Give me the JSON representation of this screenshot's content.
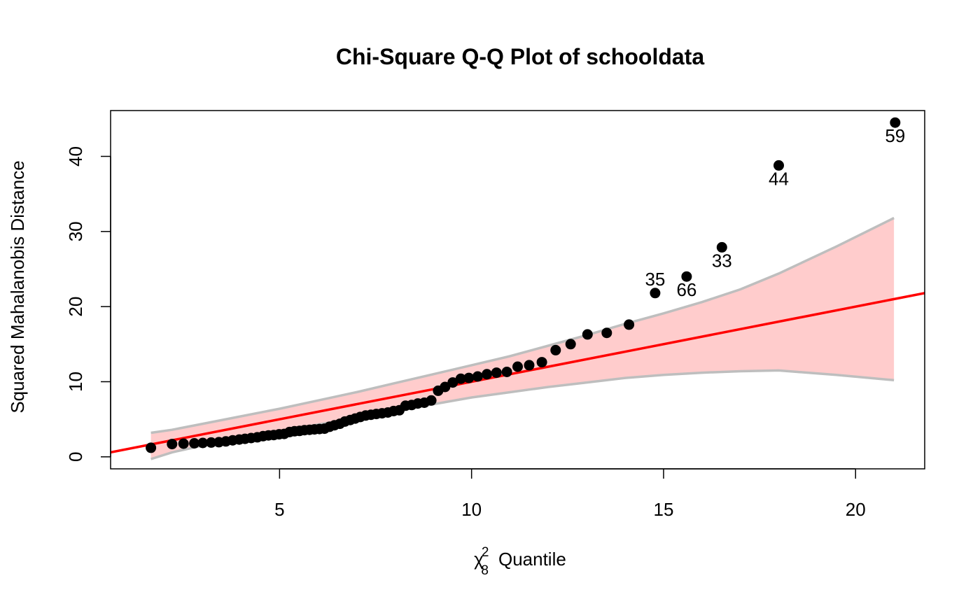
{
  "chart_data": {
    "type": "scatter",
    "title": "Chi-Square Q-Q Plot of schooldata",
    "xlabel": {
      "symbol": "χ",
      "superscript": "2",
      "subscript": "8",
      "text": "Quantile"
    },
    "ylabel": "Squared Mahalanobis Distance",
    "xlim": [
      0.6,
      21.8
    ],
    "ylim": [
      -1.6,
      46.1
    ],
    "x_ticks": [
      5,
      10,
      15,
      20
    ],
    "y_ticks": [
      0,
      10,
      20,
      30,
      40
    ],
    "grid": false,
    "legend": "none",
    "colors": {
      "points": "#000000",
      "reference_line": "#ff0000",
      "band_fill": "#ffcccc",
      "band_border": "#bebebe"
    },
    "reference_line": {
      "intercept": 0,
      "slope": 1
    },
    "band": {
      "x": [
        1.65,
        2.2,
        3.0,
        4.0,
        5.0,
        6.0,
        7.0,
        8.0,
        9.0,
        10.0,
        11.0,
        12.0,
        13.0,
        14.0,
        15.0,
        16.0,
        17.0,
        18.0,
        19.5,
        21.0
      ],
      "upper": [
        3.2,
        3.6,
        4.4,
        5.4,
        6.4,
        7.5,
        8.6,
        9.8,
        11.0,
        12.2,
        13.4,
        14.8,
        16.2,
        17.7,
        19.1,
        20.6,
        22.3,
        24.4,
        28.0,
        31.8
      ],
      "lower": [
        -0.3,
        0.6,
        1.5,
        2.5,
        3.4,
        4.3,
        5.2,
        6.1,
        7.0,
        7.9,
        8.6,
        9.3,
        9.9,
        10.5,
        10.9,
        11.2,
        11.4,
        11.5,
        10.9,
        10.2
      ]
    },
    "points": {
      "x": [
        1.65,
        2.2,
        2.5,
        2.78,
        3.0,
        3.22,
        3.42,
        3.6,
        3.78,
        3.95,
        4.1,
        4.26,
        4.42,
        4.57,
        4.71,
        4.85,
        4.99,
        5.12,
        5.26,
        5.39,
        5.52,
        5.65,
        5.78,
        5.91,
        6.04,
        6.17,
        6.3,
        6.43,
        6.57,
        6.7,
        6.84,
        6.97,
        7.1,
        7.24,
        7.38,
        7.52,
        7.67,
        7.82,
        7.97,
        8.12,
        8.28,
        8.44,
        8.6,
        8.77,
        8.95,
        9.13,
        9.31,
        9.51,
        9.72,
        9.93,
        10.16,
        10.4,
        10.65,
        10.92,
        11.2,
        11.5,
        11.83,
        12.19,
        12.58,
        13.02,
        13.52,
        14.1,
        14.78,
        15.6,
        16.52,
        18.0,
        21.03
      ],
      "y": [
        1.2,
        1.7,
        1.75,
        1.8,
        1.85,
        1.9,
        1.95,
        2.05,
        2.2,
        2.3,
        2.4,
        2.5,
        2.6,
        2.75,
        2.85,
        2.9,
        3.0,
        3.05,
        3.3,
        3.4,
        3.45,
        3.55,
        3.6,
        3.65,
        3.7,
        3.75,
        4.0,
        4.2,
        4.4,
        4.7,
        4.9,
        5.1,
        5.3,
        5.5,
        5.6,
        5.7,
        5.8,
        5.9,
        6.1,
        6.2,
        6.8,
        6.9,
        7.1,
        7.2,
        7.5,
        8.8,
        9.3,
        9.9,
        10.4,
        10.5,
        10.7,
        11.0,
        11.2,
        11.3,
        12.0,
        12.2,
        12.6,
        14.2,
        15.0,
        16.3,
        16.5,
        17.6,
        21.8,
        24.0,
        27.9,
        38.8,
        44.5
      ]
    },
    "outlier_labels": [
      {
        "label": "35",
        "x": 14.78,
        "y": 21.8,
        "position": "above"
      },
      {
        "label": "66",
        "x": 15.6,
        "y": 24.0,
        "position": "below"
      },
      {
        "label": "33",
        "x": 16.52,
        "y": 27.9,
        "position": "below"
      },
      {
        "label": "44",
        "x": 18.0,
        "y": 38.8,
        "position": "below"
      },
      {
        "label": "59",
        "x": 21.03,
        "y": 44.5,
        "position": "below"
      }
    ]
  }
}
